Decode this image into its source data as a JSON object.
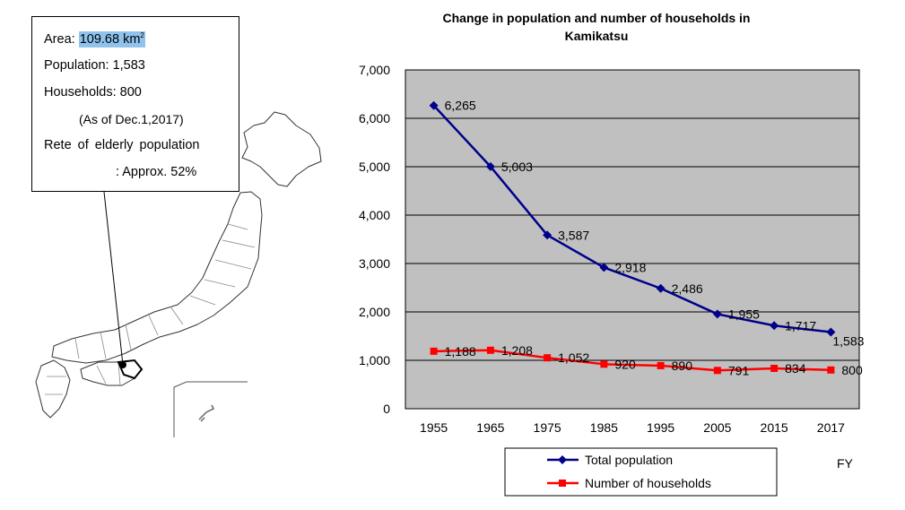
{
  "info": {
    "area_label": "Area: ",
    "area_value": "109.68 km",
    "area_unit_sup": "2",
    "population": "Population: 1,583",
    "households": "Households: 800",
    "as_of": "(As of Dec.1,2017)",
    "elderly_label": "Rete of elderly population",
    "elderly_value": ": Approx. 52%"
  },
  "chart_data": {
    "type": "line",
    "title_line1": "Change in population and number of households in",
    "title_line2": "Kamikatsu",
    "x": [
      "1955",
      "1965",
      "1975",
      "1985",
      "1995",
      "2005",
      "2015",
      "2017"
    ],
    "xlabel": "FY",
    "ylim": [
      0,
      7000
    ],
    "yticks": [
      "0",
      "1,000",
      "2,000",
      "3,000",
      "4,000",
      "5,000",
      "6,000",
      "7,000"
    ],
    "grid": true,
    "legend_position": "bottom",
    "series": [
      {
        "name": "Total population",
        "color": "#00008b",
        "marker": "diamond",
        "values": [
          6265,
          5003,
          3587,
          2918,
          2486,
          1955,
          1717,
          1583
        ],
        "labels": [
          "6,265",
          "5,003",
          "3,587",
          "2,918",
          "2,486",
          "1,955",
          "1,717",
          "1,583"
        ]
      },
      {
        "name": "Number of households",
        "color": "#ff0000",
        "marker": "square",
        "values": [
          1188,
          1208,
          1052,
          920,
          890,
          791,
          834,
          800
        ],
        "labels": [
          "1,188",
          "1,208",
          "1,052",
          "920",
          "890",
          "791",
          "834",
          "800"
        ]
      }
    ]
  }
}
